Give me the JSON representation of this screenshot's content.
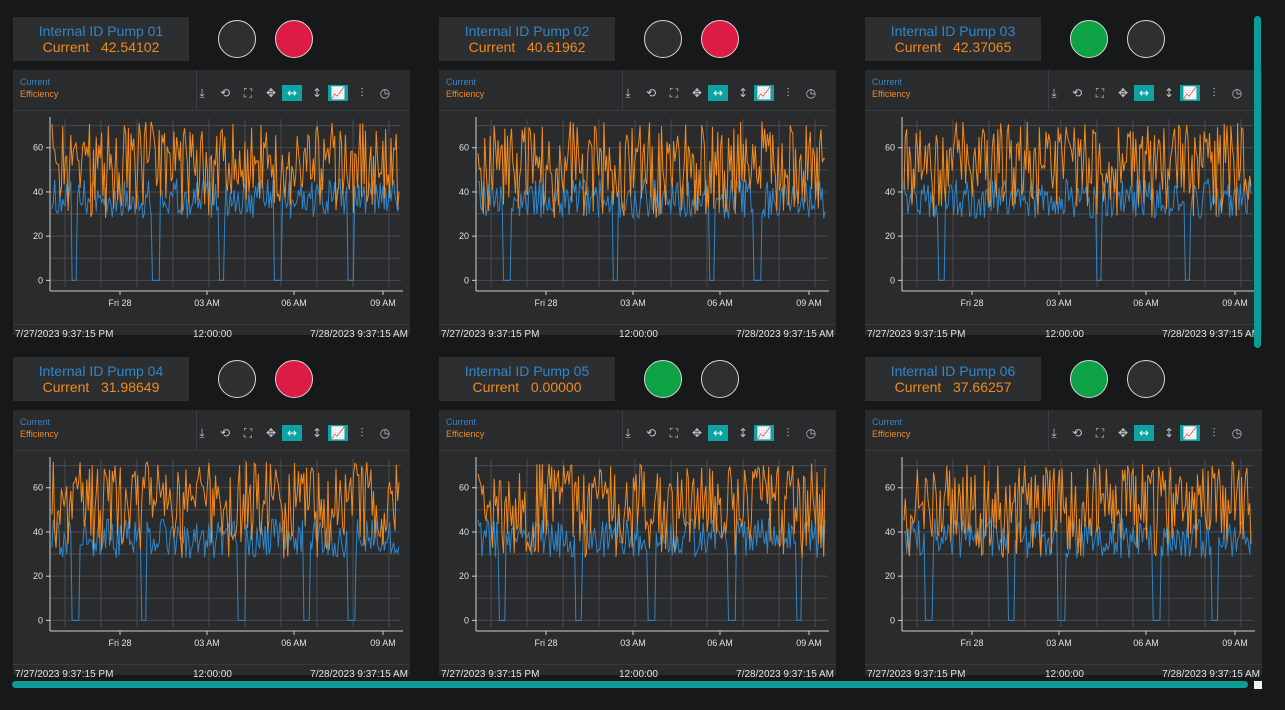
{
  "colors": {
    "current": "#2f86c9",
    "efficiency": "#f08a1e",
    "led_on_green": "#0ca245",
    "led_on_red": "#dc1c44",
    "led_off": "#2e2f31",
    "accent": "#0ea3a3"
  },
  "toolbar_icons": [
    "download-icon",
    "zoom-reset-icon",
    "fullscreen-icon",
    "pan-icon",
    "horizontal-zoom-icon",
    "vertical-zoom-icon",
    "line-chart-icon",
    "column-settings-icon",
    "history-icon"
  ],
  "panels": [
    {
      "title": "Internal ID Pump 01",
      "current_label": "Current",
      "current_value": "42.54102",
      "led_green": false,
      "led_red": true,
      "legend": {
        "current": "Current",
        "efficiency": "Efficiency"
      },
      "range": {
        "start": "7/27/2023 9:37:15 PM",
        "mid": "12:00:00",
        "end": "7/28/2023 9:37:15 AM"
      }
    },
    {
      "title": "Internal ID Pump 02",
      "current_label": "Current",
      "current_value": "40.61962",
      "led_green": false,
      "led_red": true,
      "legend": {
        "current": "Current",
        "efficiency": "Efficiency"
      },
      "range": {
        "start": "7/27/2023 9:37:15 PM",
        "mid": "12:00:00",
        "end": "7/28/2023 9:37:15 AM"
      }
    },
    {
      "title": "Internal ID Pump 03",
      "current_label": "Current",
      "current_value": "42.37065",
      "led_green": true,
      "led_red": false,
      "legend": {
        "current": "Current",
        "efficiency": "Efficiency"
      },
      "range": {
        "start": "7/27/2023 9:37:15 PM",
        "mid": "12:00:00",
        "end": "7/28/2023 9:37:15 AM"
      }
    },
    {
      "title": "Internal ID Pump 04",
      "current_label": "Current",
      "current_value": "31.98649",
      "led_green": false,
      "led_red": true,
      "legend": {
        "current": "Current",
        "efficiency": "Efficiency"
      },
      "range": {
        "start": "7/27/2023 9:37:15 PM",
        "mid": "12:00:00",
        "end": "7/28/2023 9:37:15 AM"
      }
    },
    {
      "title": "Internal ID Pump 05",
      "current_label": "Current",
      "current_value": "0.00000",
      "led_green": true,
      "led_red": false,
      "legend": {
        "current": "Current",
        "efficiency": "Efficiency"
      },
      "range": {
        "start": "7/27/2023 9:37:15 PM",
        "mid": "12:00:00",
        "end": "7/28/2023 9:37:15 AM"
      }
    },
    {
      "title": "Internal ID Pump 06",
      "current_label": "Current",
      "current_value": "37.66257",
      "led_green": true,
      "led_red": false,
      "legend": {
        "current": "Current",
        "efficiency": "Efficiency"
      },
      "range": {
        "start": "7/27/2023 9:37:15 PM",
        "mid": "12:00:00",
        "end": "7/28/2023 9:37:15 AM"
      }
    }
  ],
  "chart_data": [
    {
      "type": "line",
      "y_ticks": [
        0,
        20,
        40,
        60
      ],
      "ylim": [
        -3,
        73
      ],
      "x_ticks": [
        "Fri 28",
        "03 AM",
        "06 AM",
        "09 AM"
      ],
      "grid": true,
      "legend": "top-left",
      "series": [
        {
          "name": "Current",
          "range": [
            28,
            46
          ],
          "dropouts_to": 0,
          "dropout_count": 5
        },
        {
          "name": "Efficiency",
          "range": [
            28,
            72
          ]
        }
      ]
    },
    {
      "type": "line",
      "y_ticks": [
        0,
        20,
        40,
        60
      ],
      "ylim": [
        -3,
        73
      ],
      "x_ticks": [
        "Fri 28",
        "03 AM",
        "06 AM",
        "09 AM"
      ],
      "grid": true,
      "legend": "top-left",
      "series": [
        {
          "name": "Current",
          "range": [
            28,
            46
          ],
          "dropouts_to": 0,
          "dropout_count": 4
        },
        {
          "name": "Efficiency",
          "range": [
            28,
            72
          ]
        }
      ]
    },
    {
      "type": "line",
      "y_ticks": [
        0,
        20,
        40,
        60
      ],
      "ylim": [
        -3,
        73
      ],
      "x_ticks": [
        "Fri 28",
        "03 AM",
        "06 AM",
        "09 AM"
      ],
      "grid": true,
      "legend": "top-left",
      "series": [
        {
          "name": "Current",
          "range": [
            28,
            46
          ],
          "dropouts_to": 0,
          "dropout_count": 3
        },
        {
          "name": "Efficiency",
          "range": [
            28,
            72
          ]
        }
      ]
    },
    {
      "type": "line",
      "y_ticks": [
        0,
        20,
        40,
        60
      ],
      "ylim": [
        -3,
        73
      ],
      "x_ticks": [
        "Fri 28",
        "03 AM",
        "06 AM",
        "09 AM"
      ],
      "grid": true,
      "legend": "top-left",
      "series": [
        {
          "name": "Current",
          "range": [
            28,
            46
          ],
          "dropouts_to": 0,
          "dropout_count": 5
        },
        {
          "name": "Efficiency",
          "range": [
            28,
            72
          ]
        }
      ]
    },
    {
      "type": "line",
      "y_ticks": [
        0,
        20,
        40,
        60
      ],
      "ylim": [
        -3,
        73
      ],
      "x_ticks": [
        "Fri 28",
        "03 AM",
        "06 AM",
        "09 AM"
      ],
      "grid": true,
      "legend": "top-left",
      "series": [
        {
          "name": "Current",
          "range": [
            28,
            46
          ],
          "dropouts_to": 0,
          "dropout_count": 5
        },
        {
          "name": "Efficiency",
          "range": [
            28,
            72
          ]
        }
      ]
    },
    {
      "type": "line",
      "y_ticks": [
        0,
        20,
        40,
        60
      ],
      "ylim": [
        -3,
        73
      ],
      "x_ticks": [
        "Fri 28",
        "03 AM",
        "06 AM",
        "09 AM"
      ],
      "grid": true,
      "legend": "top-left",
      "series": [
        {
          "name": "Current",
          "range": [
            28,
            46
          ],
          "dropouts_to": 0,
          "dropout_count": 5
        },
        {
          "name": "Efficiency",
          "range": [
            28,
            72
          ]
        }
      ]
    }
  ]
}
